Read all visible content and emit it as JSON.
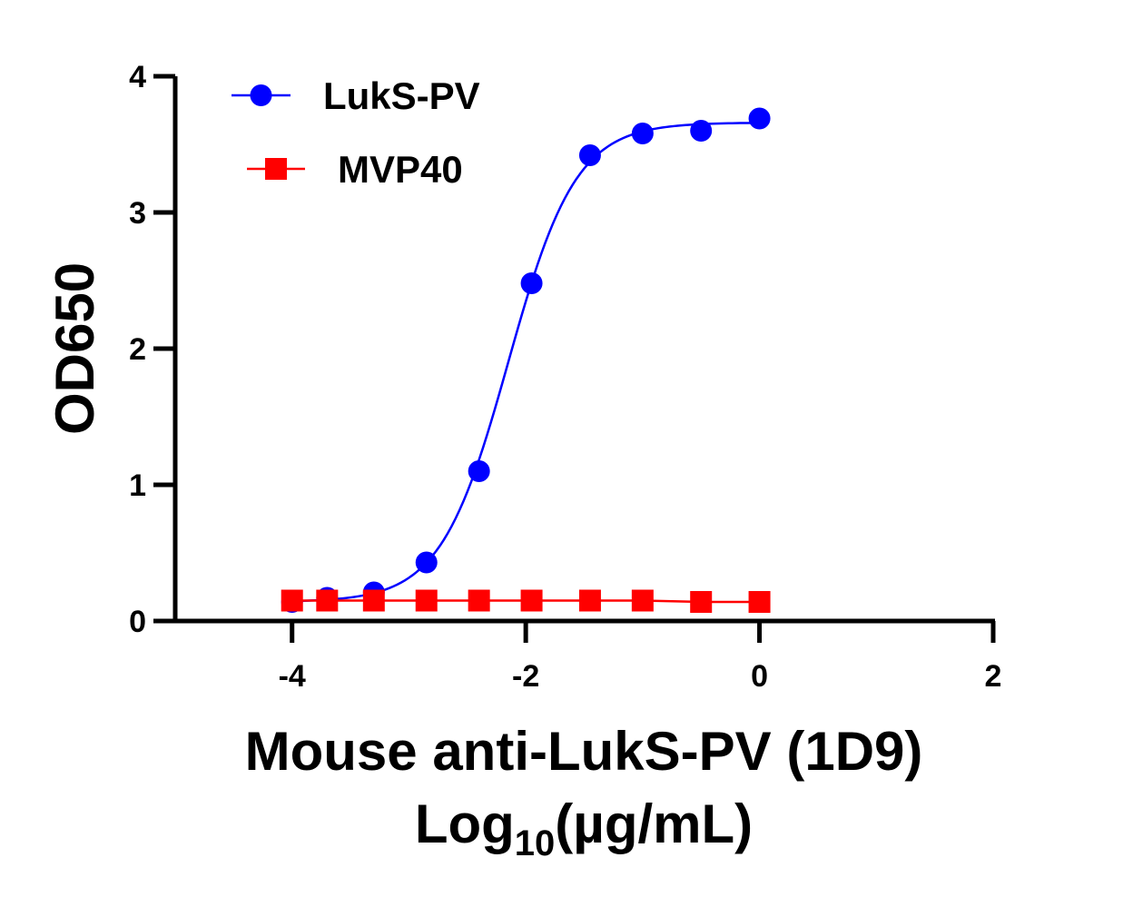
{
  "chart_data": {
    "type": "scatter",
    "title": "",
    "xlabel_line1": "Mouse anti-LukS-PV (1D9)",
    "xlabel_line2_main": "Log",
    "xlabel_line2_sub": "10",
    "xlabel_line2_unit": "(µg/mL)",
    "ylabel": "OD650",
    "xlim": [
      -5,
      2
    ],
    "ylim": [
      0,
      4
    ],
    "xticks": [
      -4,
      -2,
      0,
      2
    ],
    "xtick_labels": [
      "-4",
      "-2",
      "0",
      "2"
    ],
    "yticks": [
      0,
      1,
      2,
      3,
      4
    ],
    "ytick_labels": [
      "0",
      "1",
      "2",
      "3",
      "4"
    ],
    "grid": false,
    "legend_position": "top-left",
    "series": [
      {
        "name": "LukS-PV",
        "color": "#0000ff",
        "marker": "circle",
        "x": [
          -4.0,
          -3.7,
          -3.3,
          -2.85,
          -2.4,
          -1.95,
          -1.45,
          -1.0,
          -0.5,
          0.0
        ],
        "y": [
          0.14,
          0.17,
          0.21,
          0.43,
          1.1,
          2.48,
          3.42,
          3.58,
          3.6,
          3.69
        ],
        "fit": "sigmoid",
        "fit_params": {
          "bottom": 0.14,
          "top": 3.66,
          "logEC50": -2.15,
          "hill": 1.5
        }
      },
      {
        "name": "MVP40",
        "color": "#ff0000",
        "marker": "square",
        "x": [
          -4.0,
          -3.7,
          -3.3,
          -2.85,
          -2.4,
          -1.95,
          -1.45,
          -1.0,
          -0.5,
          0.0
        ],
        "y": [
          0.15,
          0.15,
          0.15,
          0.15,
          0.15,
          0.15,
          0.15,
          0.15,
          0.14,
          0.14
        ],
        "fit": "line"
      }
    ]
  }
}
